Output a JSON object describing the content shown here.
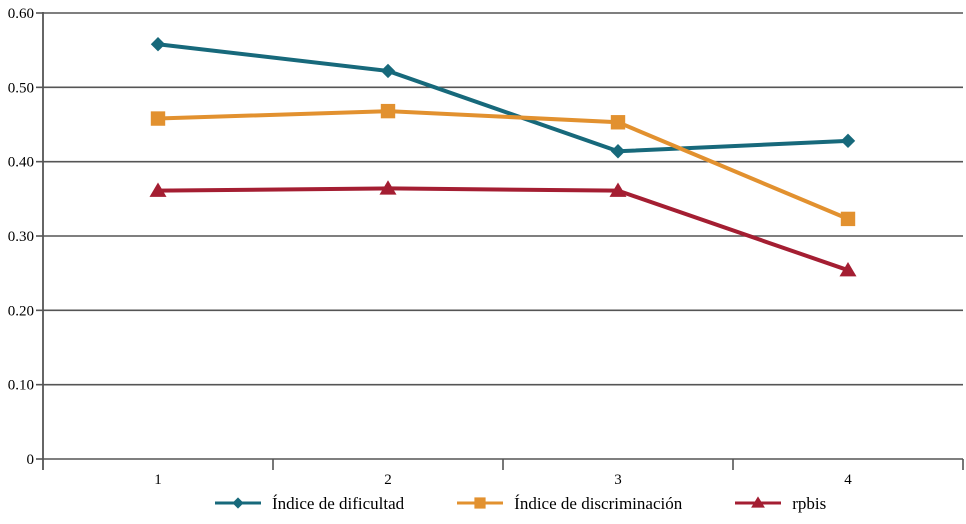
{
  "chart": {
    "background_color": "#FFFFFF",
    "gridline_color": "#555555",
    "axis_color": "#555555",
    "text_color": "#000000"
  },
  "chart_data": {
    "type": "line",
    "title": "",
    "xlabel": "",
    "ylabel": "",
    "categories": [
      "1",
      "2",
      "3",
      "4"
    ],
    "series": [
      {
        "name": "Índice de dificultad",
        "marker": "diamond",
        "color": "#17697B",
        "values": [
          0.558,
          0.522,
          0.414,
          0.428
        ]
      },
      {
        "name": "Índice de discriminación",
        "marker": "square",
        "color": "#E2912F",
        "values": [
          0.458,
          0.468,
          0.453,
          0.323
        ]
      },
      {
        "name": "rpbis",
        "marker": "triangle",
        "color": "#A41E32",
        "values": [
          0.361,
          0.364,
          0.361,
          0.254
        ]
      }
    ],
    "ylim": [
      0,
      0.6
    ],
    "ytick_step": 0.1,
    "ytick_labels": [
      "0",
      "0.10",
      "0.20",
      "0.30",
      "0.40",
      "0.50",
      "0.60"
    ],
    "grid": true,
    "legend_position": "bottom"
  }
}
